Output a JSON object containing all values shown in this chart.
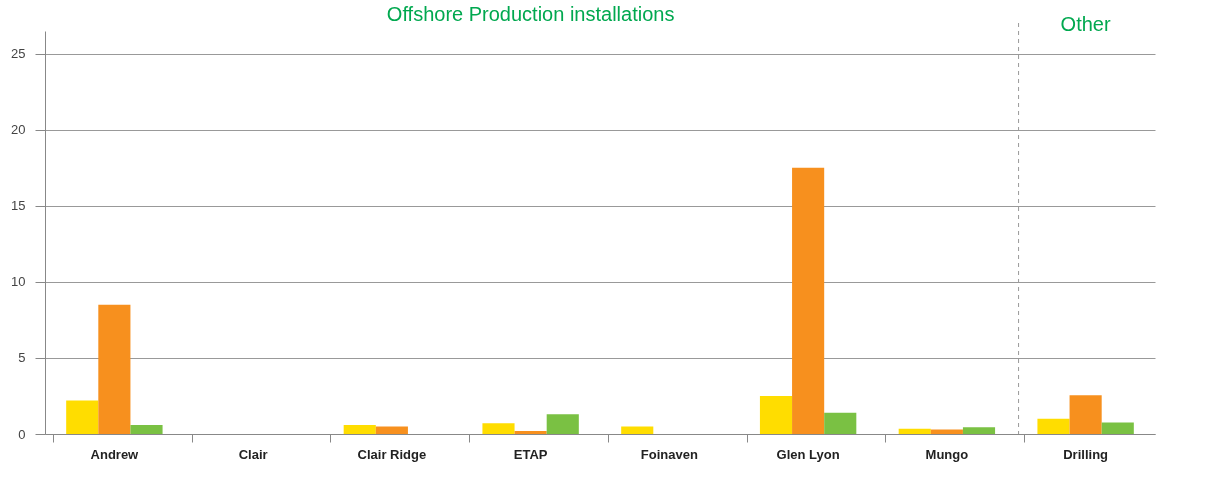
{
  "chart_data": {
    "type": "bar",
    "categories": [
      "Andrew",
      "Clair",
      "Clair Ridge",
      "ETAP",
      "Foinaven",
      "Glen Lyon",
      "Mungo",
      "Drilling"
    ],
    "series": [
      {
        "color": "#ffdd00",
        "values": [
          2.2,
          0,
          0.6,
          0.7,
          0.5,
          2.5,
          0.35,
          1.0
        ]
      },
      {
        "color": "#f7901e",
        "values": [
          8.5,
          0,
          0.5,
          0.2,
          0,
          17.5,
          0.3,
          2.55
        ]
      },
      {
        "color": "#7ac143",
        "values": [
          0.6,
          0,
          0,
          1.3,
          0,
          1.4,
          0.45,
          0.75
        ]
      }
    ],
    "ylim": [
      0,
      26.5
    ],
    "yticks": [
      0,
      5,
      10,
      15,
      20,
      25
    ],
    "grid": "y",
    "legend": false,
    "ref_lines": [
      {
        "axis": "x",
        "value": "Drilling",
        "line_style": "dashed",
        "color": "#999999"
      }
    ],
    "annotations": [
      "Offshore Production installations",
      "Other"
    ]
  }
}
